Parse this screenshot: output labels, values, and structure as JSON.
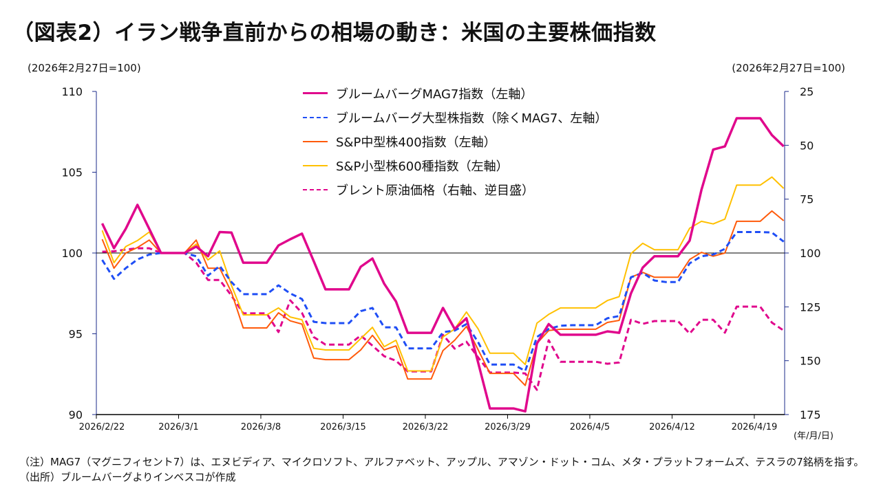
{
  "title": "（図表2）イラン戦争直前からの相場の動き：米国の主要株価指数",
  "left_unit": "(2026年2月27日=100)",
  "right_unit": "(2026年2月27日=100)",
  "x_unit": "(年/月/日)",
  "notes": [
    "（注）MAG7（マグニフィセント7）は、エヌビディア、マイクロソフト、アルファベット、アップル、アマゾン・ドット・コム、メタ・プラットフォームズ、テスラの7銘柄を指す。",
    "（出所）ブルームバーグよりインベスコが作成"
  ],
  "chart_data": {
    "type": "line",
    "x_start": "2026/2/22",
    "x_end": "2026/4/21",
    "x_ticks": [
      "2026/2/22",
      "2026/3/1",
      "2026/3/8",
      "2026/3/15",
      "2026/3/22",
      "2026/3/29",
      "2026/4/5",
      "2026/4/12",
      "2026/4/19"
    ],
    "y_left": {
      "range": [
        90,
        110
      ],
      "ticks": [
        90,
        95,
        100,
        105,
        110
      ]
    },
    "y_right": {
      "range": [
        25,
        175
      ],
      "ticks": [
        25,
        50,
        75,
        100,
        125,
        150,
        175
      ],
      "reversed": true
    },
    "reference_line": 100,
    "legend_position": "top-center",
    "series": [
      {
        "name": "ブルームバーグMAG7指数（左軸）",
        "axis": "left",
        "color": "#E0078C",
        "dash": false,
        "width": 3.5,
        "values": [
          101.83,
          100.3,
          101.5,
          102.98,
          101.5,
          100,
          100,
          100,
          100.4,
          99.8,
          101.3,
          101.27,
          99.4,
          99.4,
          99.4,
          100.47,
          100.85,
          101.2,
          99.5,
          97.75,
          97.75,
          97.75,
          99.15,
          99.66,
          98.1,
          97.0,
          95.06,
          95.06,
          95.06,
          96.6,
          95.3,
          95.96,
          93.2,
          90.38,
          90.38,
          90.38,
          90.2,
          94.4,
          95.6,
          94.94,
          94.94,
          94.94,
          94.94,
          95.15,
          95.06,
          97.5,
          99.1,
          99.8,
          99.8,
          99.8,
          100.77,
          103.9,
          106.4,
          106.6,
          108.34,
          108.34,
          108.34,
          107.3,
          106.6
        ]
      },
      {
        "name": "ブルームバーグ大型株指数（除くMAG7、左軸）",
        "axis": "left",
        "color": "#1F4EF5",
        "dash": true,
        "width": 3,
        "values": [
          99.57,
          98.4,
          99.06,
          99.6,
          99.9,
          100,
          100,
          100,
          99.8,
          98.6,
          99.2,
          98.2,
          97.45,
          97.45,
          97.45,
          98.0,
          97.5,
          97.15,
          95.74,
          95.66,
          95.66,
          95.66,
          96.4,
          96.6,
          95.4,
          95.4,
          94.1,
          94.1,
          94.1,
          95.1,
          95.2,
          95.6,
          94.47,
          93.1,
          93.1,
          93.1,
          92.7,
          94.8,
          95.3,
          95.5,
          95.53,
          95.53,
          95.53,
          95.96,
          96.1,
          98.5,
          98.77,
          98.3,
          98.2,
          98.2,
          99.36,
          99.8,
          99.9,
          100.26,
          101.3,
          101.3,
          101.3,
          101.27,
          100.7
        ]
      },
      {
        "name": "S&P中型株400指数（左軸）",
        "axis": "left",
        "color": "#FF5A0A",
        "dash": false,
        "width": 2,
        "values": [
          100.85,
          99.06,
          100.0,
          100.34,
          100.8,
          100,
          100,
          100,
          100.8,
          99.06,
          99.06,
          97.57,
          95.36,
          95.36,
          95.36,
          96.3,
          95.8,
          95.6,
          93.5,
          93.4,
          93.4,
          93.4,
          94.0,
          94.9,
          94.0,
          94.25,
          92.2,
          92.2,
          92.2,
          93.96,
          94.6,
          95.45,
          94.0,
          92.55,
          92.55,
          92.55,
          91.8,
          94.4,
          95.2,
          95.28,
          95.28,
          95.28,
          95.28,
          95.7,
          95.83,
          98.5,
          98.8,
          98.5,
          98.5,
          98.5,
          99.6,
          100.04,
          99.8,
          100.0,
          101.96,
          101.96,
          101.96,
          102.6,
          102.0
        ]
      },
      {
        "name": "S&P小型株600種指数（左軸）",
        "axis": "left",
        "color": "#FFC000",
        "dash": false,
        "width": 2,
        "values": [
          101.4,
          99.4,
          100.4,
          100.77,
          101.3,
          100,
          100,
          100,
          100.55,
          99.57,
          100.13,
          98.0,
          96.17,
          96.17,
          96.17,
          96.6,
          96.04,
          95.87,
          94.1,
          94.0,
          94.0,
          94.0,
          94.7,
          95.4,
          94.2,
          94.6,
          92.7,
          92.7,
          92.7,
          94.8,
          95.3,
          96.35,
          95.3,
          93.8,
          93.8,
          93.8,
          93.1,
          95.66,
          96.2,
          96.6,
          96.6,
          96.6,
          96.6,
          97.06,
          97.3,
          99.96,
          100.6,
          100.2,
          100.2,
          100.2,
          101.53,
          101.96,
          101.8,
          102.1,
          104.2,
          104.2,
          104.2,
          104.7,
          104.0
        ]
      },
      {
        "name": "ブレント原油価格（右軸、逆目盛）",
        "axis": "right",
        "color": "#E0078C",
        "dash": true,
        "width": 3,
        "values": [
          99.4,
          99.2,
          98.4,
          97.8,
          97.8,
          100,
          100,
          100,
          104.5,
          112.5,
          112.5,
          119.8,
          128,
          128,
          128,
          136.7,
          122,
          127.8,
          139,
          142.5,
          142.5,
          142.5,
          138.3,
          143,
          147.9,
          150,
          155,
          155,
          155,
          138,
          144.4,
          141.2,
          148.5,
          155.5,
          155.5,
          155.5,
          155.9,
          163.5,
          140.5,
          150.5,
          150.5,
          150.5,
          150.5,
          151.4,
          150.8,
          131,
          132.9,
          131.6,
          131.6,
          131.6,
          137.4,
          131,
          131,
          137,
          124.9,
          124.9,
          124.9,
          132.3,
          136
        ]
      }
    ]
  }
}
